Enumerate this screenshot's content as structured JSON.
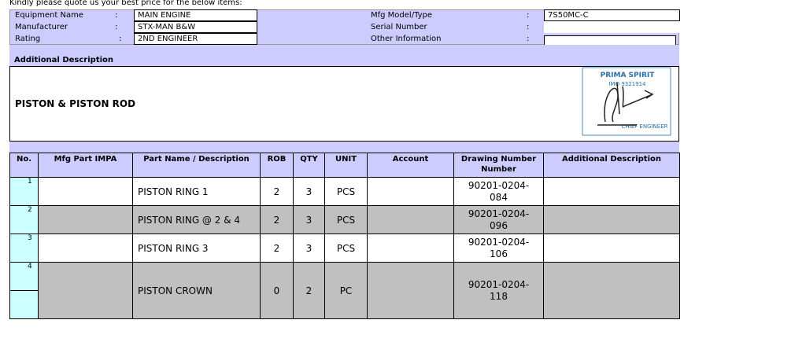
{
  "intro": "Kindly please quote us your best price for the below items:",
  "header": {
    "separator": ":",
    "left": [
      {
        "label": "Equipment Name",
        "value": "MAIN ENGINE"
      },
      {
        "label": "Manufacturer",
        "value": "STX-MAN B&W"
      },
      {
        "label": "Rating",
        "value": "2ND ENGINEER"
      }
    ],
    "right": [
      {
        "label": "Mfg Model/Type",
        "value": "7S50MC-C"
      },
      {
        "label": "Serial Number",
        "value": null
      },
      {
        "label": "Other Information",
        "value": null
      }
    ]
  },
  "description": {
    "heading": "Additional Description",
    "text": "PISTON & PISTON ROD"
  },
  "stamp": {
    "name": "PRIMA SPIRIT",
    "imo": "IMO 9321914",
    "role": "CHIEF ENGINEER"
  },
  "table": {
    "columns": [
      "No.",
      "Mfg Part IMPA",
      "Part Name / Description",
      "ROB",
      "QTY",
      "UNIT",
      "Account",
      "Drawing Number Number",
      "Additional Description"
    ],
    "rows": [
      [
        "1",
        null,
        "PISTON RING 1",
        "2",
        "3",
        "PCS",
        null,
        "90201-0204-084",
        null
      ],
      [
        "2",
        null,
        "PISTON RING @ 2 & 4",
        "2",
        "3",
        "PCS",
        null,
        "90201-0204-096",
        null
      ],
      [
        "3",
        null,
        "PISTON RING 3",
        "2",
        "3",
        "PCS",
        null,
        "90201-0204-106",
        null
      ],
      [
        "4",
        null,
        "PISTON CROWN",
        "0",
        "2",
        "PC",
        null,
        "90201-0204-118",
        null
      ]
    ]
  }
}
